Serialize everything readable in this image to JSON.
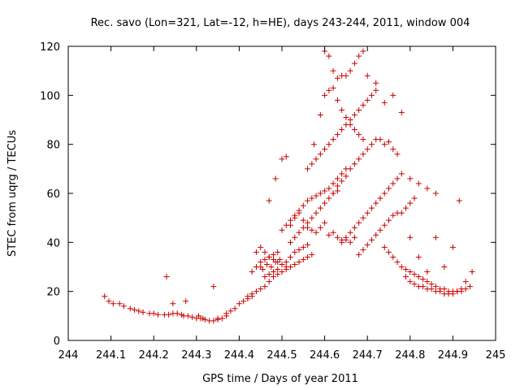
{
  "chart_data": {
    "type": "scatter",
    "title": "Rec. savo (Lon=321, Lat=-12, h=HE), days 243-244, 2011, window 004",
    "xlabel": "GPS time / Days of year 2011",
    "ylabel": "STEC from uqrg / TECUs",
    "xlim": [
      244,
      245
    ],
    "ylim": [
      0,
      120
    ],
    "xticks": [
      "244",
      "244.1",
      "244.2",
      "244.3",
      "244.4",
      "244.5",
      "244.6",
      "244.7",
      "244.8",
      "244.9",
      "245"
    ],
    "yticks": [
      "0",
      "20",
      "40",
      "60",
      "80",
      "100",
      "120"
    ],
    "grid": false,
    "marker": "plus",
    "color": "#c80000",
    "series": [
      {
        "x": [
          244.085,
          244.095,
          244.105,
          244.12,
          244.13,
          244.145,
          244.155,
          244.165,
          244.175,
          244.19,
          244.2,
          244.21,
          244.225,
          244.235,
          244.245,
          244.255,
          244.265,
          244.27,
          244.28,
          244.29,
          244.3,
          244.31,
          244.32,
          244.33,
          244.34,
          244.35,
          244.36,
          244.37,
          244.38,
          244.39,
          244.4,
          244.41,
          244.42,
          244.43,
          244.23,
          244.245,
          244.275,
          244.34,
          244.305,
          244.315,
          244.35,
          244.37,
          244.42,
          244.43,
          244.44,
          244.45,
          244.46,
          244.47,
          244.48,
          244.49,
          244.5,
          244.51,
          244.52,
          244.53,
          244.54,
          244.55,
          244.56,
          244.57,
          244.43,
          244.44,
          244.45,
          244.455,
          244.46,
          244.465,
          244.47,
          244.475,
          244.48,
          244.485,
          244.49,
          244.495,
          244.44,
          244.45,
          244.46,
          244.47,
          244.48,
          244.49,
          244.5,
          244.51,
          244.45,
          244.46,
          244.47,
          244.48,
          244.49,
          244.5,
          244.51,
          244.52,
          244.53,
          244.54,
          244.55,
          244.56,
          244.47,
          244.485,
          244.5,
          244.51,
          244.52,
          244.53,
          244.54,
          244.55,
          244.56,
          244.57,
          244.58,
          244.59,
          244.6,
          244.61,
          244.62,
          244.63,
          244.64,
          244.65,
          244.66,
          244.67,
          244.5,
          244.51,
          244.52,
          244.53,
          244.54,
          244.55,
          244.56,
          244.57,
          244.58,
          244.59,
          244.6,
          244.61,
          244.62,
          244.63,
          244.64,
          244.65,
          244.52,
          244.53,
          244.54,
          244.55,
          244.56,
          244.57,
          244.58,
          244.59,
          244.6,
          244.61,
          244.62,
          244.63,
          244.56,
          244.57,
          244.58,
          244.59,
          244.6,
          244.61,
          244.62,
          244.63,
          244.64,
          244.65,
          244.66,
          244.67,
          244.68,
          244.69,
          244.7,
          244.71,
          244.72,
          244.575,
          244.59,
          244.6,
          244.61,
          244.62,
          244.63,
          244.64,
          244.65,
          244.66,
          244.67,
          244.68,
          244.69,
          244.6,
          244.61,
          244.62,
          244.63,
          244.64,
          244.65,
          244.66,
          244.67,
          244.68,
          244.69,
          244.62,
          244.63,
          244.64,
          244.65,
          244.66,
          244.67,
          244.68,
          244.69,
          244.7,
          244.71,
          244.72,
          244.73,
          244.74,
          244.75,
          244.76,
          244.77,
          244.64,
          244.65,
          244.66,
          244.67,
          244.68,
          244.69,
          244.7,
          244.71,
          244.72,
          244.73,
          244.74,
          244.75,
          244.76,
          244.77,
          244.78,
          244.68,
          244.69,
          244.7,
          244.71,
          244.72,
          244.73,
          244.74,
          244.75,
          244.76,
          244.77,
          244.78,
          244.79,
          244.8,
          244.81,
          244.7,
          244.72,
          244.74,
          244.76,
          244.78,
          244.8,
          244.82,
          244.84,
          244.86,
          244.74,
          244.75,
          244.76,
          244.77,
          244.78,
          244.79,
          244.8,
          244.81,
          244.82,
          244.83,
          244.84,
          244.85,
          244.86,
          244.87,
          244.88,
          244.89,
          244.9,
          244.91,
          244.92,
          244.93,
          244.94,
          244.79,
          244.8,
          244.81,
          244.82,
          244.83,
          244.84,
          244.85,
          244.86,
          244.87,
          244.88,
          244.89,
          244.9,
          244.91,
          244.92,
          244.8,
          244.82,
          244.84,
          244.86,
          244.88,
          244.9,
          244.915,
          244.93,
          244.945
        ],
        "y": [
          18,
          16,
          15,
          15,
          14,
          13,
          12.5,
          12,
          11.5,
          11,
          11,
          10.5,
          10.5,
          10.5,
          11,
          11,
          10.5,
          10,
          10,
          9.5,
          9,
          9,
          8.5,
          8,
          8,
          8.5,
          9,
          10,
          12,
          13,
          15,
          16,
          17,
          18,
          26,
          15,
          16,
          22,
          10,
          9,
          9,
          11,
          18,
          19,
          20,
          21,
          22,
          24,
          26,
          27,
          28,
          29,
          30,
          31,
          32,
          33,
          34,
          35,
          28,
          30,
          32,
          29,
          33,
          31,
          34,
          30,
          35,
          32,
          36,
          33,
          36,
          30,
          26,
          27,
          28,
          29,
          31,
          32,
          38,
          36,
          34,
          33,
          32,
          31,
          30,
          34,
          36,
          37,
          38,
          39,
          57,
          66,
          74,
          75,
          47,
          50,
          52,
          49,
          46,
          45,
          44,
          46,
          48,
          43,
          44,
          42,
          41,
          41,
          40,
          42,
          45,
          47,
          49,
          51,
          53,
          55,
          57,
          58,
          59,
          60,
          61,
          62,
          64,
          66,
          68,
          70,
          40,
          42,
          44,
          46,
          48,
          50,
          52,
          54,
          56,
          58,
          60,
          61,
          70,
          72,
          74,
          76,
          78,
          80,
          82,
          84,
          86,
          88,
          90,
          92,
          94,
          96,
          98,
          100,
          102,
          80,
          92,
          100,
          102,
          103,
          98,
          94,
          91,
          88,
          86,
          84,
          82,
          118,
          116,
          110,
          107,
          108,
          108,
          110,
          113,
          116,
          118,
          60,
          63,
          65,
          67,
          70,
          72,
          74,
          76,
          78,
          80,
          82,
          82,
          80,
          81,
          78,
          76,
          40,
          42,
          44,
          46,
          48,
          50,
          52,
          54,
          56,
          58,
          60,
          62,
          64,
          66,
          68,
          35,
          37,
          39,
          41,
          43,
          45,
          47,
          49,
          51,
          52,
          52,
          54,
          56,
          58,
          108,
          105,
          97,
          100,
          93,
          66,
          64,
          62,
          60,
          38,
          36,
          34,
          32,
          30,
          29,
          28,
          27,
          26,
          25,
          24,
          23,
          22,
          21,
          21,
          20,
          20,
          20,
          21,
          21,
          22,
          26,
          24,
          23,
          22,
          22,
          21,
          21,
          20,
          20,
          19,
          19,
          19,
          20,
          20,
          42,
          34,
          28,
          42,
          30,
          38,
          57,
          24,
          28
        ]
      }
    ]
  }
}
